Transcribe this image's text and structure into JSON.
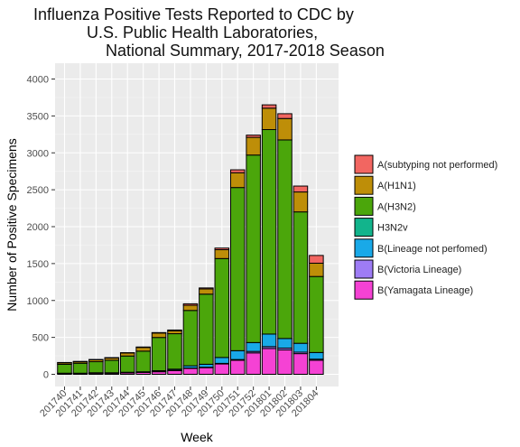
{
  "chart_data": {
    "type": "bar",
    "stacked": true,
    "title_lines": [
      "Influenza Positive Tests Reported to CDC by",
      "U.S. Public Health Laboratories,",
      "National Summary, 2017-2018 Season"
    ],
    "xlabel": "Week",
    "ylabel": "Number of Positive Specimens",
    "ylim": [
      0,
      4000
    ],
    "yticks": [
      0,
      500,
      1000,
      1500,
      2000,
      2500,
      3000,
      3500,
      4000
    ],
    "grid": true,
    "legend_position": "right",
    "categories": [
      "201740",
      "201741",
      "201742",
      "201743",
      "201744",
      "201745",
      "201746",
      "201747",
      "201748",
      "201749",
      "201750",
      "201751",
      "201752",
      "201801",
      "201802",
      "201803",
      "201804"
    ],
    "series": [
      {
        "name": "B(Yamagata Lineage)",
        "color": "#F542D4",
        "values": [
          10,
          10,
          15,
          15,
          20,
          25,
          35,
          50,
          80,
          90,
          140,
          190,
          290,
          350,
          330,
          280,
          190
        ]
      },
      {
        "name": "B(Victoria Lineage)",
        "color": "#9E7CF5",
        "values": [
          2,
          2,
          2,
          2,
          3,
          3,
          4,
          5,
          5,
          6,
          8,
          10,
          20,
          25,
          25,
          20,
          15
        ]
      },
      {
        "name": "B(Lineage not perfomed)",
        "color": "#19A9E8",
        "values": [
          3,
          3,
          4,
          4,
          5,
          6,
          10,
          15,
          30,
          40,
          80,
          120,
          120,
          170,
          130,
          120,
          90
        ]
      },
      {
        "name": "H3N2v",
        "color": "#12B48C",
        "values": [
          0,
          0,
          0,
          0,
          0,
          0,
          0,
          0,
          0,
          0,
          0,
          0,
          0,
          0,
          0,
          0,
          0
        ]
      },
      {
        "name": "A(H3N2)",
        "color": "#4BA60B",
        "values": [
          120,
          135,
          150,
          170,
          220,
          280,
          450,
          480,
          750,
          950,
          1340,
          2210,
          2540,
          2770,
          2690,
          1780,
          1030
        ]
      },
      {
        "name": "A(H1N1)",
        "color": "#BE8E08",
        "values": [
          20,
          20,
          25,
          30,
          40,
          50,
          60,
          40,
          70,
          70,
          120,
          200,
          240,
          290,
          290,
          270,
          180
        ]
      },
      {
        "name": "A(subtyping not performed)",
        "color": "#F26661",
        "values": [
          5,
          5,
          5,
          5,
          5,
          6,
          6,
          10,
          20,
          14,
          22,
          40,
          30,
          45,
          65,
          80,
          105
        ]
      }
    ],
    "legend_order": [
      "A(subtyping not performed)",
      "A(H1N1)",
      "A(H3N2)",
      "H3N2v",
      "B(Lineage not perfomed)",
      "B(Victoria Lineage)",
      "B(Yamagata Lineage)"
    ]
  }
}
